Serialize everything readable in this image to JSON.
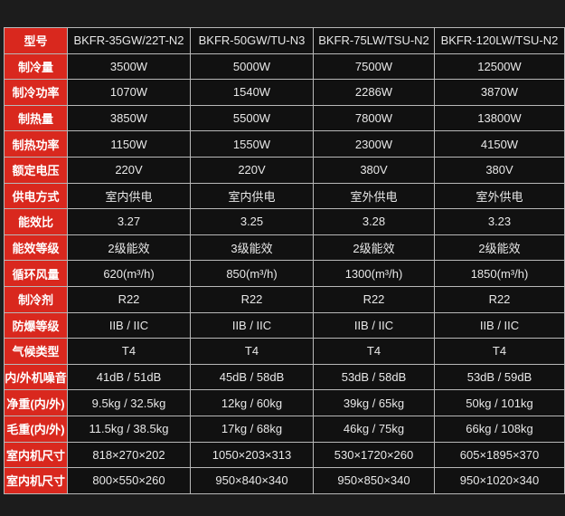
{
  "header": {
    "label": "型号",
    "models": [
      "BKFR-35GW/22T-N2",
      "BKFR-50GW/TU-N3",
      "BKFR-75LW/TSU-N2",
      "BKFR-120LW/TSU-N2"
    ]
  },
  "rows": [
    {
      "label": "制冷量",
      "values": [
        "3500W",
        "5000W",
        "7500W",
        "12500W"
      ]
    },
    {
      "label": "制冷功率",
      "values": [
        "1070W",
        "1540W",
        "2286W",
        "3870W"
      ]
    },
    {
      "label": "制热量",
      "values": [
        "3850W",
        "5500W",
        "7800W",
        "13800W"
      ]
    },
    {
      "label": "制热功率",
      "values": [
        "1150W",
        "1550W",
        "2300W",
        "4150W"
      ]
    },
    {
      "label": "额定电压",
      "values": [
        "220V",
        "220V",
        "380V",
        "380V"
      ]
    },
    {
      "label": "供电方式",
      "values": [
        "室内供电",
        "室内供电",
        "室外供电",
        "室外供电"
      ]
    },
    {
      "label": "能效比",
      "values": [
        "3.27",
        "3.25",
        "3.28",
        "3.23"
      ]
    },
    {
      "label": "能效等级",
      "values": [
        "2级能效",
        "3级能效",
        "2级能效",
        "2级能效"
      ]
    },
    {
      "label": "循环风量",
      "values": [
        "620(m³/h)",
        "850(m³/h)",
        "1300(m³/h)",
        "1850(m³/h)"
      ]
    },
    {
      "label": "制冷剂",
      "values": [
        "R22",
        "R22",
        "R22",
        "R22"
      ]
    },
    {
      "label": "防爆等级",
      "values": [
        "IIB / IIC",
        "IIB / IIC",
        "IIB / IIC",
        "IIB / IIC"
      ]
    },
    {
      "label": "气候类型",
      "values": [
        "T4",
        "T4",
        "T4",
        "T4"
      ]
    },
    {
      "label": "内/外机噪音",
      "values": [
        "41dB / 51dB",
        "45dB / 58dB",
        "53dB / 58dB",
        "53dB / 59dB"
      ]
    },
    {
      "label": "净重(内/外)",
      "values": [
        "9.5kg / 32.5kg",
        "12kg / 60kg",
        "39kg / 65kg",
        "50kg / 101kg"
      ]
    },
    {
      "label": "毛重(内/外)",
      "values": [
        "11.5kg / 38.5kg",
        "17kg / 68kg",
        "46kg / 75kg",
        "66kg / 108kg"
      ]
    },
    {
      "label": "室内机尺寸",
      "values": [
        "818×270×202",
        "1050×203×313",
        "530×1720×260",
        "605×1895×370"
      ]
    },
    {
      "label": "室内机尺寸",
      "values": [
        "800×550×260",
        "950×840×340",
        "950×850×340",
        "950×1020×340"
      ]
    }
  ],
  "colors": {
    "label_bg": "#d9281e",
    "cell_bg": "#111111",
    "page_bg": "#1c1c1c"
  }
}
